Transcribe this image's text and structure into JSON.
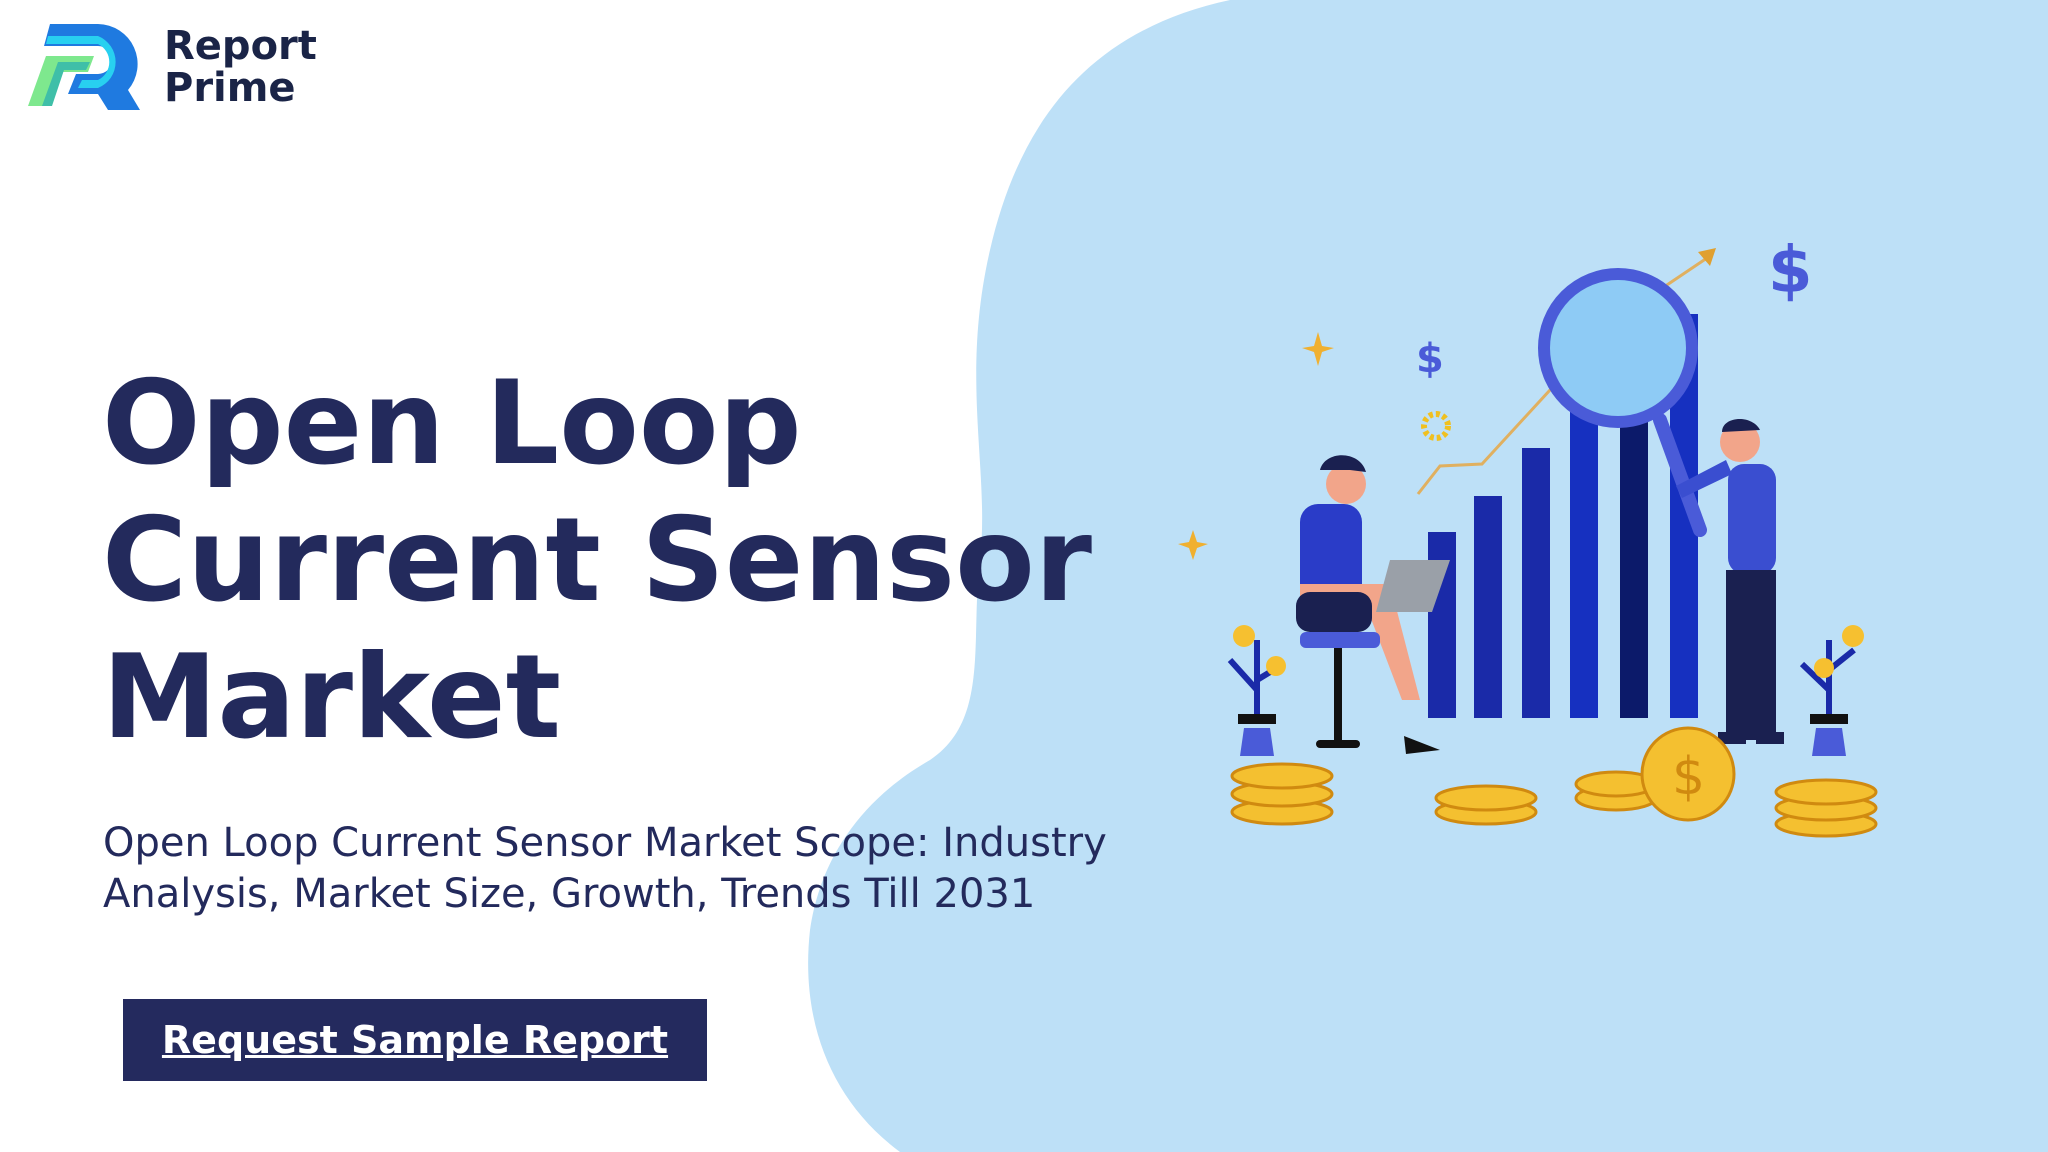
{
  "brand": {
    "name_line1": "Report",
    "name_line2": "Prime",
    "logo_icon": "report-prime-r-logo"
  },
  "hero": {
    "title": "Open Loop Current Sensor Market",
    "subtitle": "Open Loop Current Sensor Market Scope: Industry Analysis, Market Size, Growth, Trends Till 2031",
    "cta_label": "Request Sample Report"
  },
  "colors": {
    "title": "#232a5c",
    "button_bg": "#242a5e",
    "blob": "#bde0f7",
    "accent_blue": "#1a2aa8"
  },
  "illustration": {
    "icons": [
      "magnifier-icon",
      "dollar-icon",
      "bar-chart-icon",
      "coin-icon",
      "plant-icon",
      "gear-icon"
    ],
    "currency_symbol": "$"
  }
}
